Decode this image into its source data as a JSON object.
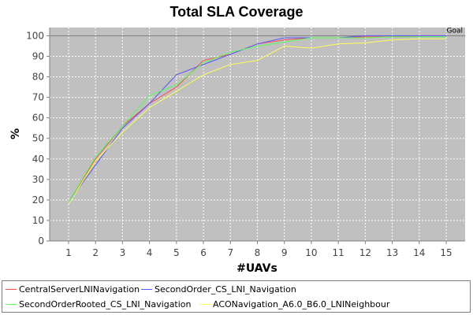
{
  "chart_data": {
    "type": "line",
    "title": "Total SLA Coverage",
    "xlabel": "#UAVs",
    "ylabel": "%",
    "x": [
      1,
      2,
      3,
      4,
      5,
      6,
      7,
      8,
      9,
      10,
      11,
      12,
      13,
      14,
      15
    ],
    "xlim": [
      0.3,
      15.7
    ],
    "ylim": [
      0,
      104
    ],
    "yticks": [
      0,
      10,
      20,
      30,
      40,
      50,
      60,
      70,
      80,
      90,
      100
    ],
    "grid": true,
    "plot_background": "#c0c0c0",
    "legend_position": "bottom",
    "annotations": [
      {
        "text": "Goal",
        "y": 100
      }
    ],
    "series": [
      {
        "name": "CentralServerLNINavigation",
        "color": "#ff4d4d",
        "values": [
          19,
          40,
          56,
          67,
          75,
          88,
          91,
          96,
          98,
          99,
          99,
          99.5,
          99.5,
          100,
          100
        ]
      },
      {
        "name": "SecondOrder_CS_LNI_Navigation",
        "color": "#5555ff",
        "values": [
          19,
          37,
          55,
          67,
          81,
          86,
          91,
          96,
          99,
          99,
          99,
          100,
          100,
          100,
          100
        ]
      },
      {
        "name": "SecondOrderRooted_CS_LNI_Navigation",
        "color": "#55ff55",
        "values": [
          19,
          41,
          56,
          71,
          76,
          87,
          92,
          95,
          97,
          99,
          99,
          99,
          99.5,
          99.5,
          99.5
        ]
      },
      {
        "name": "ACONavigation_A6.0_B6.0_LNINeighbour",
        "color": "#ffff55",
        "values": [
          18,
          39,
          53,
          65,
          73,
          81,
          86,
          88,
          95,
          94,
          96,
          96.5,
          98,
          98.5,
          98.5
        ]
      }
    ]
  }
}
